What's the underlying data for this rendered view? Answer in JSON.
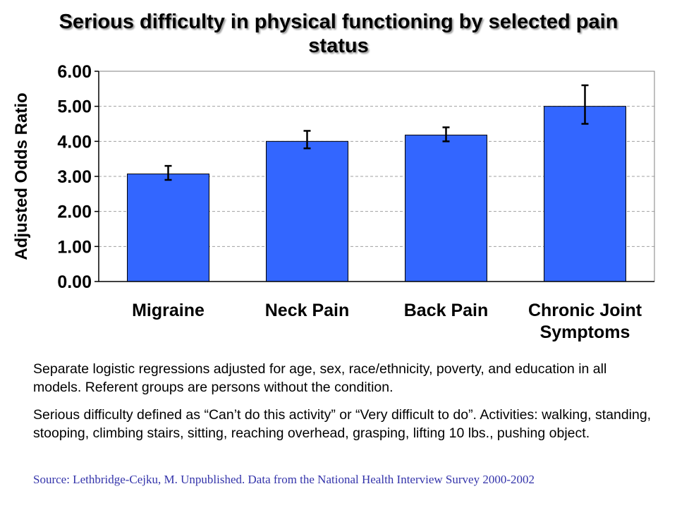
{
  "chart_data": {
    "type": "bar",
    "title": "Serious difficulty in physical functioning by selected pain status",
    "ylabel": "Adjusted Odds Ratio",
    "xlabel": "",
    "categories": [
      "Migraine",
      "Neck Pain",
      "Back Pain",
      "Chronic Joint Symptoms"
    ],
    "category_lines": [
      [
        "Migraine"
      ],
      [
        "Neck Pain"
      ],
      [
        "Back Pain"
      ],
      [
        "Chronic Joint",
        "Symptoms"
      ]
    ],
    "values": [
      3.07,
      4.0,
      4.18,
      5.0
    ],
    "error_low": [
      2.9,
      3.8,
      4.0,
      4.5
    ],
    "error_high": [
      3.3,
      4.3,
      4.4,
      5.6
    ],
    "ylim": [
      0,
      6
    ],
    "yticks": [
      0,
      1,
      2,
      3,
      4,
      5,
      6
    ],
    "ytick_labels": [
      "0.00",
      "1.00",
      "2.00",
      "3.00",
      "4.00",
      "5.00",
      "6.00"
    ],
    "grid": true,
    "bar_color": "#3366ff",
    "bar_edge_color": "#000000"
  },
  "notes": {
    "paragraph1": "Separate logistic regressions adjusted for age, sex, race/ethnicity, poverty, and education in all models. Referent groups are persons without the condition.",
    "paragraph2": "Serious difficulty defined as “Can’t do this activity” or “Very difficult to do”. Activities: walking, standing, stooping, climbing stairs, sitting, reaching overhead, grasping, lifting 10 lbs., pushing object.",
    "source": "Source:  Lethbridge-Cejku, M. Unpublished. Data from the National Health Interview Survey 2000-2002"
  },
  "colors": {
    "source_text": "#3333aa",
    "gridline": "#a0a0a0"
  }
}
